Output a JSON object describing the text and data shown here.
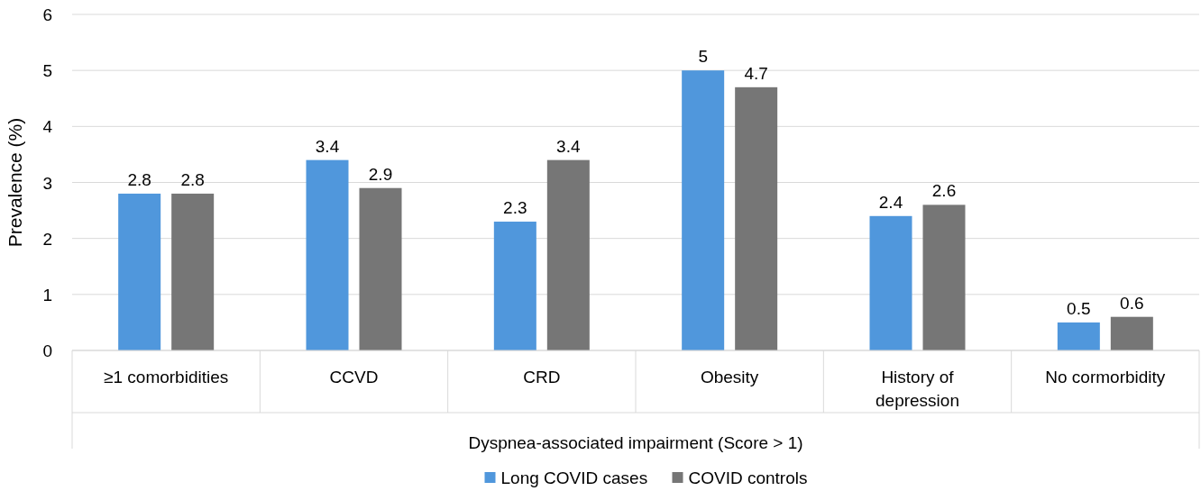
{
  "chart_data": {
    "type": "bar",
    "ylabel": "Prevalence (%)",
    "xlabel": "Dyspnea-associated impairment (Score > 1)",
    "categories": [
      "≥1 comorbidities",
      "CCVD",
      "CRD",
      "Obesity",
      "History of depression",
      "No cormorbidity"
    ],
    "series": [
      {
        "name": "Long COVID cases",
        "color": "#5097dc",
        "values": [
          2.8,
          3.4,
          2.3,
          5,
          2.4,
          0.5
        ]
      },
      {
        "name": "COVID controls",
        "color": "#767676",
        "values": [
          2.8,
          2.9,
          3.4,
          4.7,
          2.6,
          0.6
        ]
      }
    ],
    "ylim": [
      0,
      6
    ],
    "yticks": [
      0,
      1,
      2,
      3,
      4,
      5,
      6
    ],
    "grid": "y",
    "data_labels": true,
    "legend": "bottom"
  }
}
